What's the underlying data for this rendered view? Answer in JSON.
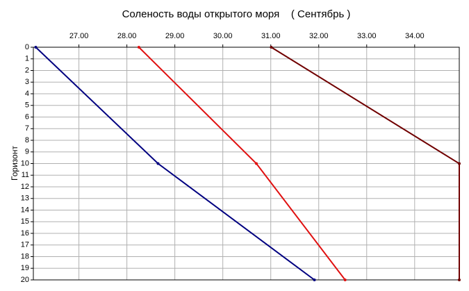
{
  "chart_data": {
    "type": "line",
    "title": "Соленость воды открытого моря    ( Сентябрь )",
    "ylabel": "Горизонт",
    "y": [
      0,
      10,
      20
    ],
    "series": [
      {
        "color": "#000080",
        "values": [
          26.1,
          28.65,
          31.91
        ]
      },
      {
        "color": "#e01010",
        "values": [
          28.25,
          30.7,
          32.55
        ]
      },
      {
        "color": "#700000",
        "values": [
          31.01,
          34.93,
          34.93
        ]
      }
    ],
    "xlim": [
      26.05,
      34.93
    ],
    "xticks": [
      {
        "value": 27,
        "label": "27.00"
      },
      {
        "value": 28,
        "label": "28.00"
      },
      {
        "value": 29,
        "label": "29.00"
      },
      {
        "value": 30,
        "label": "30.00"
      },
      {
        "value": 31,
        "label": "31.00"
      },
      {
        "value": 32,
        "label": "32.00"
      },
      {
        "value": 33,
        "label": "33.00"
      },
      {
        "value": 34,
        "label": "34.00"
      }
    ],
    "ylim": [
      0,
      20
    ],
    "yticks": [
      0,
      1,
      2,
      3,
      4,
      5,
      6,
      7,
      8,
      9,
      10,
      11,
      12,
      13,
      14,
      15,
      16,
      17,
      18,
      19,
      20
    ],
    "y_reversed": true,
    "grid": true
  }
}
